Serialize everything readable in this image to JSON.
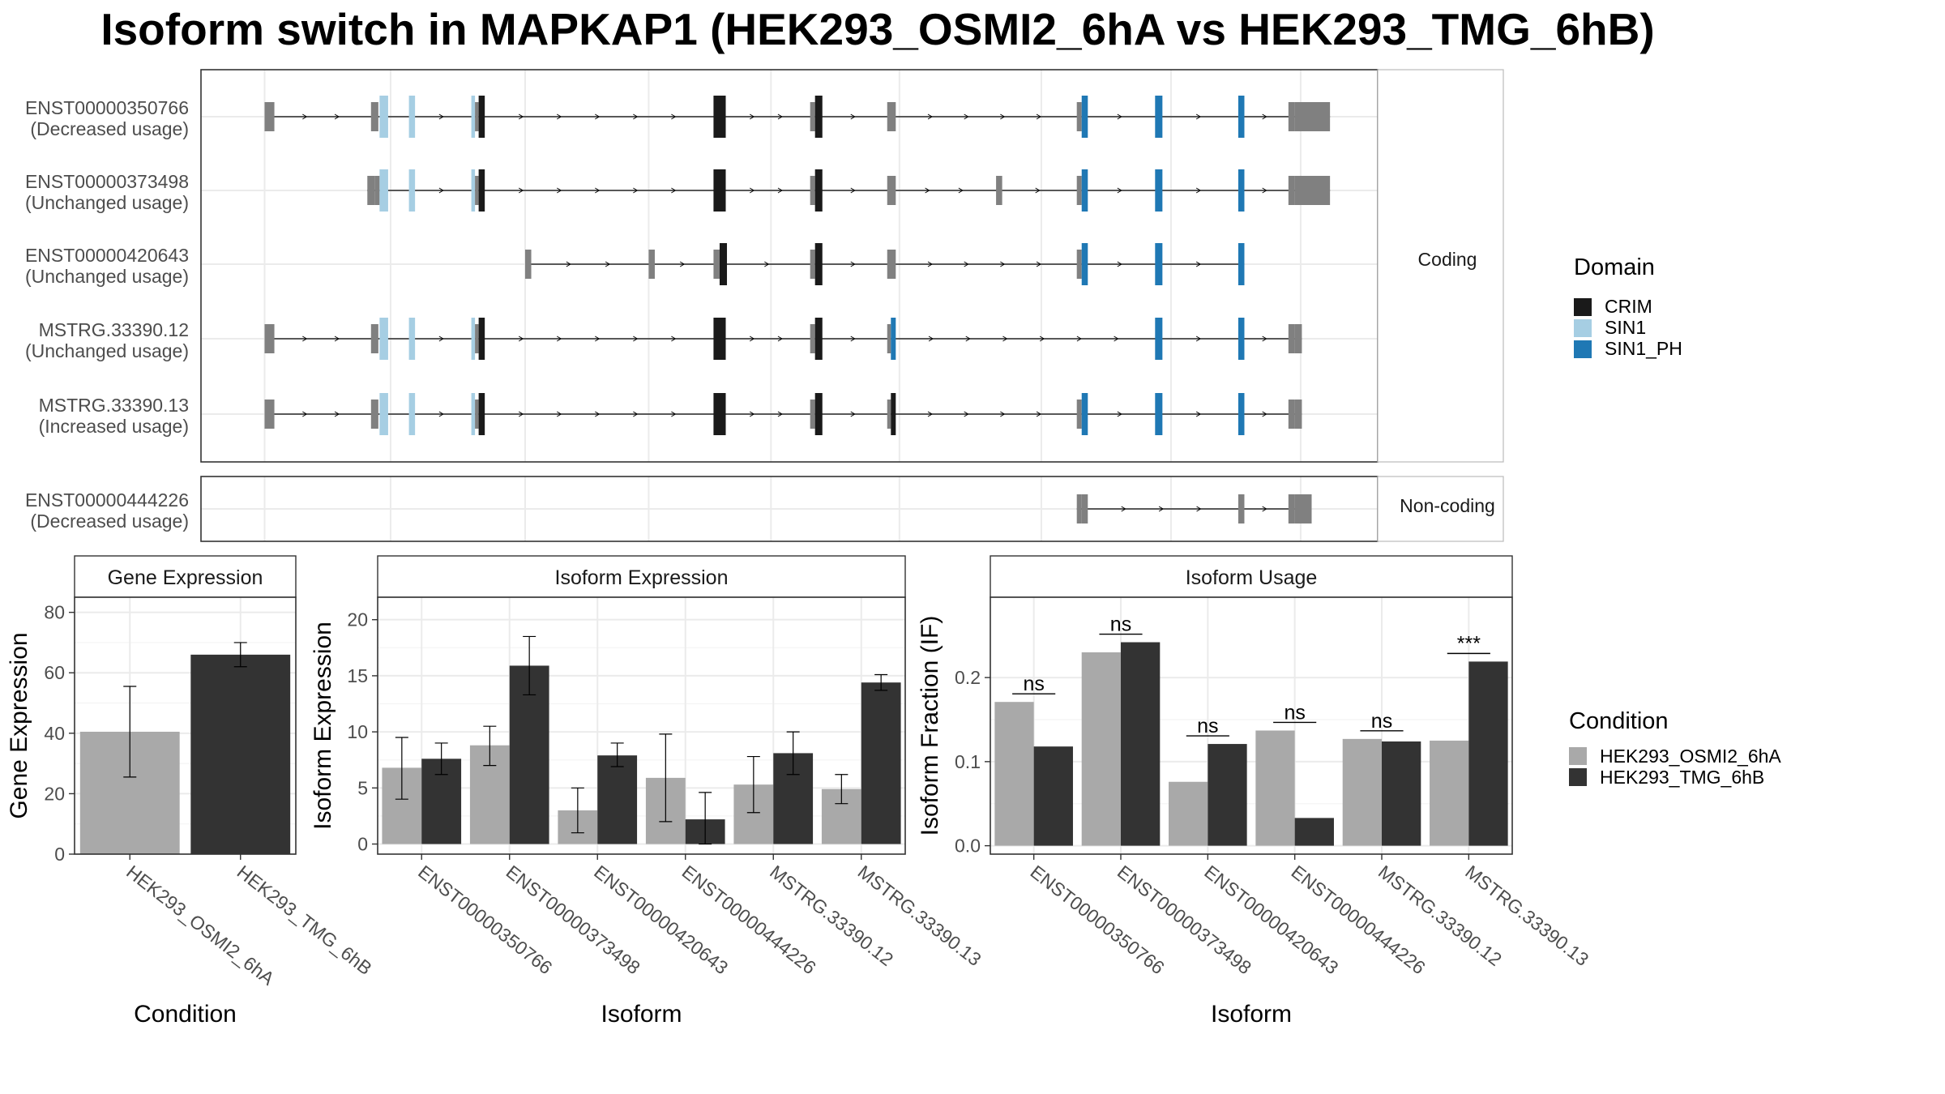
{
  "title": "Isoform switch in MAPKAP1 (HEK293_OSMI2_6hA vs HEK293_TMG_6hB)",
  "colors": {
    "CRIM": "#1a1a1a",
    "SIN1": "#a6cee3",
    "SIN1_PH": "#1f78b4",
    "exon": "#808080",
    "cond1": "#a9a9a9",
    "cond2": "#333333"
  },
  "structure": {
    "coding_label": "Coding",
    "noncoding_label": "Non-coding",
    "coding": [
      {
        "id": "ENST00000350766",
        "usage": "(Decreased usage)",
        "exons": [
          [
            210,
            218
          ],
          [
            297,
            303
          ],
          [
            304,
            311
          ],
          [
            328,
            333
          ],
          [
            379,
            382
          ],
          [
            382,
            385
          ],
          [
            385,
            390
          ],
          [
            577,
            587
          ],
          [
            656,
            660
          ],
          [
            660,
            666
          ],
          [
            719,
            726
          ],
          [
            874,
            878
          ],
          [
            878,
            883
          ],
          [
            938,
            944
          ],
          [
            1006,
            1011
          ],
          [
            1047,
            1052
          ],
          [
            1052,
            1081
          ]
        ],
        "domains": {
          "SIN1": [
            [
              304,
              311
            ],
            [
              328,
              333
            ],
            [
              379,
              382
            ]
          ],
          "CRIM": [
            [
              385,
              390
            ],
            [
              577,
              587
            ],
            [
              660,
              666
            ]
          ],
          "SIN1_PH": [
            [
              878,
              883
            ],
            [
              938,
              944
            ],
            [
              1006,
              1011
            ]
          ]
        },
        "thick": [
          [
            1052,
            1081
          ]
        ]
      },
      {
        "id": "ENST00000373498",
        "usage": "(Unchanged usage)",
        "exons": [
          [
            294,
            300
          ],
          [
            300,
            304
          ],
          [
            304,
            311
          ],
          [
            328,
            333
          ],
          [
            379,
            382
          ],
          [
            382,
            385
          ],
          [
            385,
            390
          ],
          [
            577,
            587
          ],
          [
            656,
            660
          ],
          [
            660,
            666
          ],
          [
            719,
            726
          ],
          [
            808,
            813
          ],
          [
            874,
            878
          ],
          [
            878,
            883
          ],
          [
            938,
            944
          ],
          [
            1006,
            1011
          ],
          [
            1047,
            1052
          ],
          [
            1052,
            1081
          ]
        ],
        "domains": {
          "SIN1": [
            [
              304,
              311
            ],
            [
              328,
              333
            ],
            [
              379,
              382
            ]
          ],
          "CRIM": [
            [
              385,
              390
            ],
            [
              577,
              587
            ],
            [
              660,
              666
            ]
          ],
          "SIN1_PH": [
            [
              878,
              883
            ],
            [
              938,
              944
            ],
            [
              1006,
              1011
            ]
          ]
        },
        "thick": [
          [
            1052,
            1081
          ]
        ]
      },
      {
        "id": "ENST00000420643",
        "usage": "(Unchanged usage)",
        "exons": [
          [
            423,
            428
          ],
          [
            524,
            529
          ],
          [
            577,
            582
          ],
          [
            582,
            588
          ],
          [
            656,
            660
          ],
          [
            660,
            666
          ],
          [
            719,
            726
          ],
          [
            874,
            878
          ],
          [
            878,
            883
          ],
          [
            938,
            944
          ],
          [
            1006,
            1011
          ]
        ],
        "domains": {
          "CRIM": [
            [
              582,
              588
            ],
            [
              660,
              666
            ]
          ],
          "SIN1_PH": [
            [
              878,
              883
            ],
            [
              938,
              944
            ],
            [
              1006,
              1011
            ]
          ]
        },
        "thick": []
      },
      {
        "id": "MSTRG.33390.12",
        "usage": "(Unchanged usage)",
        "exons": [
          [
            210,
            218
          ],
          [
            297,
            303
          ],
          [
            304,
            311
          ],
          [
            328,
            333
          ],
          [
            379,
            382
          ],
          [
            382,
            385
          ],
          [
            385,
            390
          ],
          [
            577,
            587
          ],
          [
            656,
            660
          ],
          [
            660,
            666
          ],
          [
            719,
            722
          ],
          [
            722,
            726
          ],
          [
            938,
            944
          ],
          [
            1006,
            1011
          ],
          [
            1047,
            1052
          ],
          [
            1052,
            1058
          ]
        ],
        "domains": {
          "SIN1": [
            [
              304,
              311
            ],
            [
              328,
              333
            ],
            [
              379,
              382
            ]
          ],
          "CRIM": [
            [
              385,
              390
            ],
            [
              577,
              587
            ],
            [
              660,
              666
            ]
          ],
          "SIN1_PH": [
            [
              722,
              726
            ],
            [
              938,
              944
            ],
            [
              1006,
              1011
            ]
          ]
        },
        "thick": []
      },
      {
        "id": "MSTRG.33390.13",
        "usage": "(Increased usage)",
        "exons": [
          [
            210,
            218
          ],
          [
            297,
            303
          ],
          [
            304,
            311
          ],
          [
            328,
            333
          ],
          [
            379,
            382
          ],
          [
            382,
            385
          ],
          [
            385,
            390
          ],
          [
            577,
            587
          ],
          [
            656,
            660
          ],
          [
            660,
            666
          ],
          [
            719,
            722
          ],
          [
            722,
            726
          ],
          [
            874,
            878
          ],
          [
            878,
            883
          ],
          [
            938,
            944
          ],
          [
            1006,
            1011
          ],
          [
            1047,
            1052
          ],
          [
            1052,
            1058
          ]
        ],
        "domains": {
          "SIN1": [
            [
              304,
              311
            ],
            [
              328,
              333
            ],
            [
              379,
              382
            ]
          ],
          "CRIM": [
            [
              385,
              390
            ],
            [
              577,
              587
            ],
            [
              660,
              666
            ],
            [
              722,
              726
            ]
          ],
          "SIN1_PH": [
            [
              878,
              883
            ],
            [
              938,
              944
            ],
            [
              1006,
              1011
            ]
          ]
        },
        "thick": []
      }
    ],
    "noncoding": [
      {
        "id": "ENST00000444226",
        "usage": "(Decreased usage)",
        "exons": [
          [
            874,
            878
          ],
          [
            878,
            883
          ],
          [
            1006,
            1011
          ],
          [
            1047,
            1052
          ],
          [
            1052,
            1066
          ]
        ],
        "thick": [
          [
            878,
            883
          ],
          [
            1052,
            1066
          ]
        ]
      }
    ],
    "x_range": [
      158,
      1120
    ]
  },
  "legends": {
    "domain_title": "Domain",
    "domain_items": [
      "CRIM",
      "SIN1",
      "SIN1_PH"
    ],
    "condition_title": "Condition",
    "condition_items": [
      "HEK293_OSMI2_6hA",
      "HEK293_TMG_6hB"
    ]
  },
  "chart_data": [
    {
      "type": "bar",
      "title": "Gene Expression",
      "xlabel": "Condition",
      "ylabel": "Gene Expression",
      "categories": [
        "HEK293_OSMI2_6hA",
        "HEK293_TMG_6hB"
      ],
      "values": [
        40.5,
        66.0
      ],
      "errors": [
        [
          25.5,
          55.5
        ],
        [
          62.0,
          70.0
        ]
      ],
      "ylim": [
        0,
        85
      ],
      "yticks": [
        0,
        20,
        40,
        60,
        80
      ]
    },
    {
      "type": "bar",
      "title": "Isoform Expression",
      "xlabel": "Isoform",
      "ylabel": "Isoform Expression",
      "categories": [
        "ENST00000350766",
        "ENST00000373498",
        "ENST00000420643",
        "ENST00000444226",
        "MSTRG.33390.12",
        "MSTRG.33390.13"
      ],
      "series": [
        {
          "name": "HEK293_OSMI2_6hA",
          "values": [
            6.8,
            8.8,
            3.0,
            5.9,
            5.3,
            4.9
          ],
          "errors": [
            [
              4.0,
              9.5
            ],
            [
              7.0,
              10.5
            ],
            [
              1.0,
              5.0
            ],
            [
              2.0,
              9.8
            ],
            [
              2.8,
              7.8
            ],
            [
              3.6,
              6.2
            ]
          ]
        },
        {
          "name": "HEK293_TMG_6hB",
          "values": [
            7.6,
            15.9,
            7.9,
            2.2,
            8.1,
            14.4
          ],
          "errors": [
            [
              6.2,
              9.0
            ],
            [
              13.3,
              18.5
            ],
            [
              6.9,
              9.0
            ],
            [
              0.0,
              4.6
            ],
            [
              6.2,
              10.0
            ],
            [
              13.7,
              15.1
            ]
          ]
        }
      ],
      "ylim": [
        -0.9,
        22
      ],
      "yticks": [
        0,
        5,
        10,
        15,
        20
      ]
    },
    {
      "type": "bar",
      "title": "Isoform Usage",
      "xlabel": "Isoform",
      "ylabel": "Isoform Fraction (IF)",
      "categories": [
        "ENST00000350766",
        "ENST00000373498",
        "ENST00000420643",
        "ENST00000444226",
        "MSTRG.33390.12",
        "MSTRG.33390.13"
      ],
      "series": [
        {
          "name": "HEK293_OSMI2_6hA",
          "values": [
            0.171,
            0.23,
            0.076,
            0.137,
            0.127,
            0.125
          ]
        },
        {
          "name": "HEK293_TMG_6hB",
          "values": [
            0.118,
            0.242,
            0.121,
            0.033,
            0.124,
            0.219
          ]
        }
      ],
      "significance": [
        "ns",
        "ns",
        "ns",
        "ns",
        "ns",
        "***"
      ],
      "ylim": [
        -0.01,
        0.2955
      ],
      "yticks": [
        0.0,
        0.1,
        0.2
      ],
      "ytick_labels": [
        "0.0",
        "0.1",
        "0.2"
      ]
    }
  ]
}
